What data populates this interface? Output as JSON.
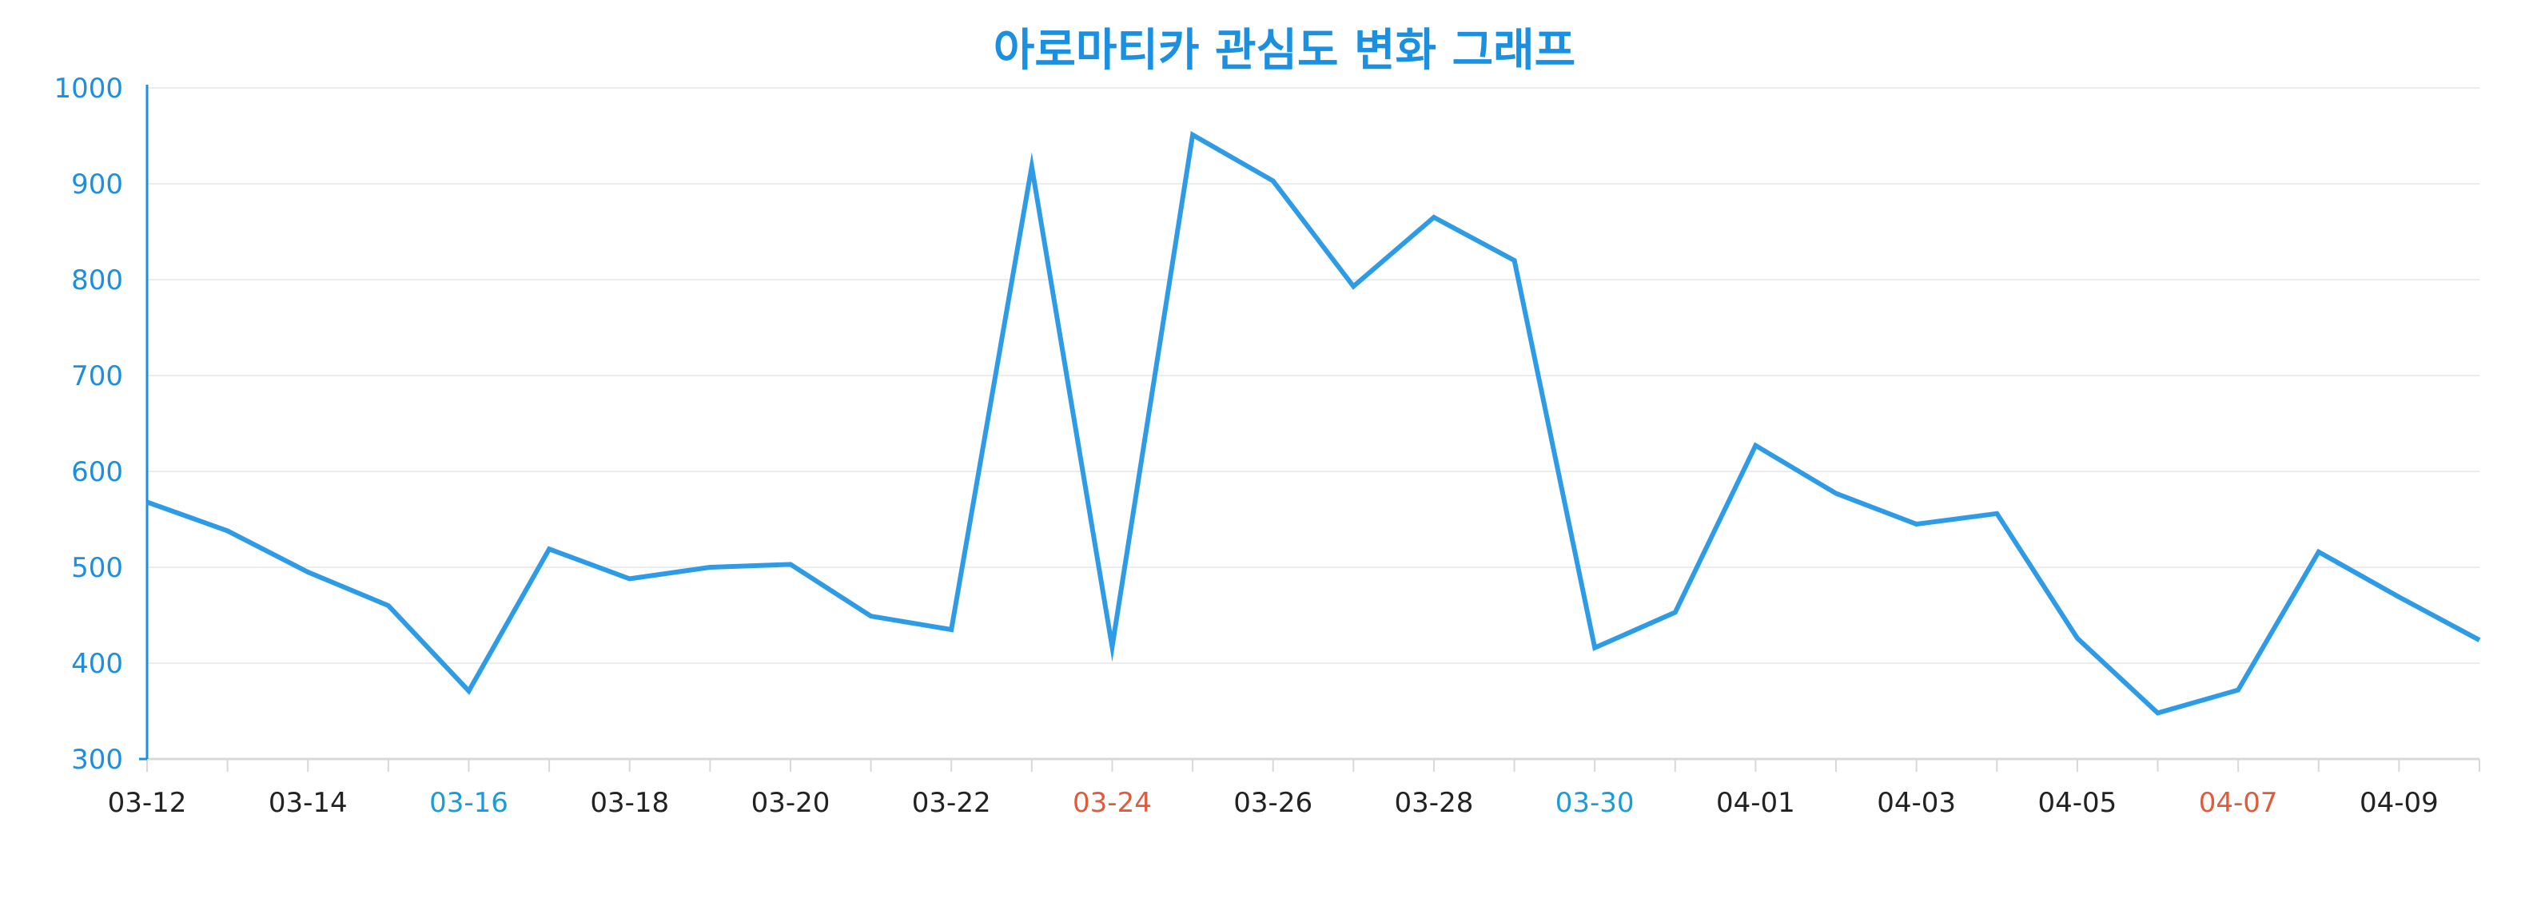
{
  "chart_data": {
    "type": "line",
    "title": "아로마티카 관심도 변화 그래프",
    "xlabel": "",
    "ylabel": "",
    "ylim": [
      300,
      1000
    ],
    "yticks": [
      300,
      400,
      500,
      600,
      700,
      800,
      900,
      1000
    ],
    "grid": true,
    "legend": "none",
    "x": [
      "03-12",
      "03-13",
      "03-14",
      "03-15",
      "03-16",
      "03-17",
      "03-18",
      "03-19",
      "03-20",
      "03-21",
      "03-22",
      "03-23",
      "03-24",
      "03-25",
      "03-26",
      "03-27",
      "03-28",
      "03-29",
      "03-30",
      "03-31",
      "04-01",
      "04-02",
      "04-03",
      "04-04",
      "04-05",
      "04-06",
      "04-07",
      "04-08",
      "04-09",
      "04-10"
    ],
    "x_tick_labels": [
      "03-12",
      "03-14",
      "03-16",
      "03-18",
      "03-20",
      "03-22",
      "03-24",
      "03-26",
      "03-28",
      "03-30",
      "04-01",
      "04-03",
      "04-05",
      "04-07",
      "04-09"
    ],
    "series": [
      {
        "values": [
          568,
          538,
          495,
          460,
          371,
          519,
          488,
          500,
          503,
          449,
          435,
          918,
          417,
          951,
          903,
          793,
          865,
          820,
          416,
          453,
          627,
          577,
          545,
          556,
          426,
          348,
          372,
          516,
          469,
          424
        ]
      }
    ],
    "colors": {
      "line": "#2e9be6",
      "title": "#1b8fe0",
      "y_axis": "#1b8fe0",
      "y_tick_label": "#1b8fe0",
      "grid": "#ececec",
      "x_axis": "#d8d8d8",
      "x_tick_label": "#222222",
      "saturday": "#1b9cd8",
      "sunday": "#e05a3c"
    },
    "x_tick_label_colors": {
      "03-16": "saturday",
      "03-30": "saturday",
      "03-24": "sunday",
      "04-07": "sunday"
    }
  }
}
